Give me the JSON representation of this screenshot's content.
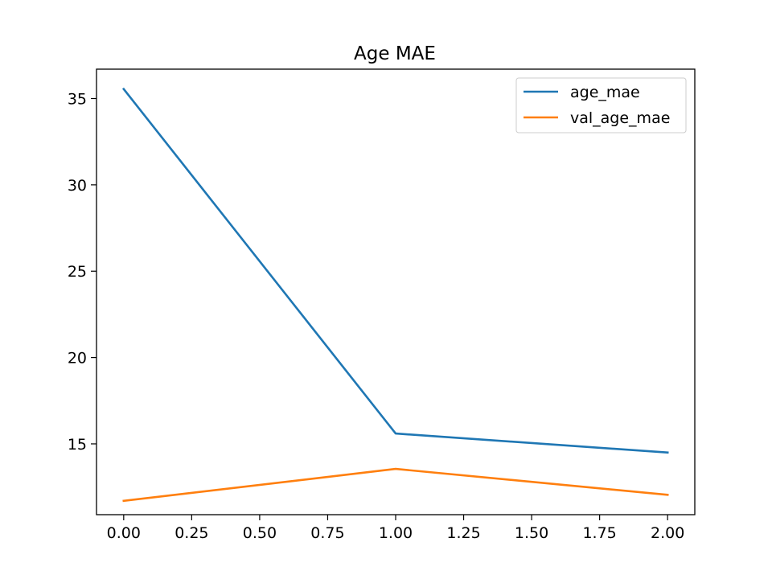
{
  "chart_data": {
    "type": "line",
    "title": "Age MAE",
    "xlabel": "",
    "ylabel": "",
    "xlim": [
      -0.1,
      2.1
    ],
    "ylim": [
      10.9,
      36.7
    ],
    "x_ticks": [
      0.0,
      0.25,
      0.5,
      0.75,
      1.0,
      1.25,
      1.5,
      1.75,
      2.0
    ],
    "x_tick_labels": [
      "0.00",
      "0.25",
      "0.50",
      "0.75",
      "1.00",
      "1.25",
      "1.50",
      "1.75",
      "2.00"
    ],
    "y_ticks": [
      15,
      20,
      25,
      30,
      35
    ],
    "y_tick_labels": [
      "15",
      "20",
      "25",
      "30",
      "35"
    ],
    "grid": false,
    "legend_position": "top-right",
    "x": [
      0,
      1,
      2
    ],
    "series": [
      {
        "name": "age_mae",
        "color": "#1f77b4",
        "values": [
          35.55,
          15.6,
          14.5
        ]
      },
      {
        "name": "val_age_mae",
        "color": "#ff7f0e",
        "values": [
          11.7,
          13.55,
          12.05
        ]
      }
    ]
  }
}
